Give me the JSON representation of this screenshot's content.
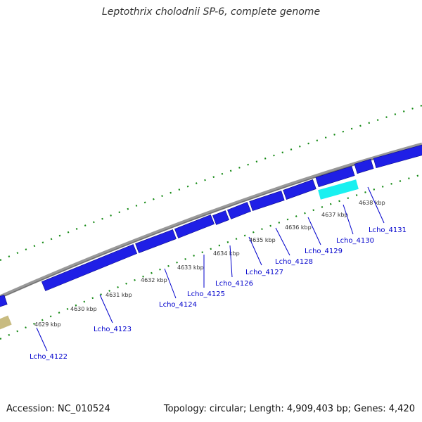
{
  "title": "Leptothrix cholodnii SP-6, complete genome",
  "footer": {
    "accession": "Accession: NC_010524",
    "topology": "Topology: circular; Length: 4,909,403 bp; Genes: 4,420"
  },
  "colors": {
    "backbone": "#888888",
    "gene": "#1f1fe6",
    "gene_highlight": "#19f0f0",
    "gene_other": "#c8bb80",
    "tick": "#118811",
    "label": "#0000cc"
  },
  "kbp_ticks": [
    "4629 kbp",
    "4630 kbp",
    "4631 kbp",
    "4632 kbp",
    "4633 kbp",
    "4634 kbp",
    "4635 kbp",
    "4636 kbp",
    "4637 kbp",
    "4638 kbp"
  ],
  "genes": [
    "Lcho_4122",
    "Lcho_4123",
    "Lcho_4124",
    "Lcho_4125",
    "Lcho_4126",
    "Lcho_4127",
    "Lcho_4128",
    "Lcho_4129",
    "Lcho_4130",
    "Lcho_4131"
  ]
}
